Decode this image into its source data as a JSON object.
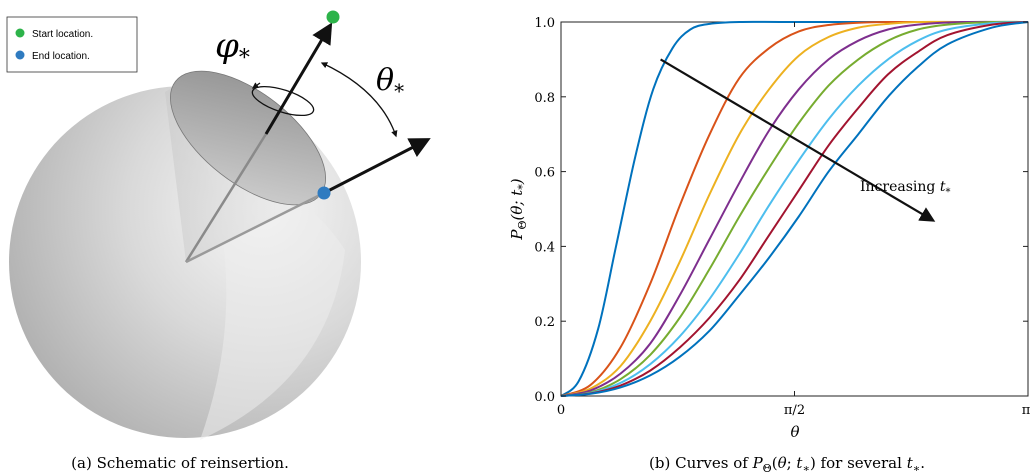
{
  "left_panel": {
    "legend": {
      "start_label": "Start location.",
      "end_label": "End location.",
      "start_color": "#2db34a",
      "end_color": "#2f7bc0"
    },
    "phi_symbol": "φ",
    "phi_subscript": "*",
    "theta_symbol": "θ",
    "theta_subscript": "*",
    "caption": "(a)  Schematic of reinsertion."
  },
  "chart_data": {
    "type": "line",
    "title": "",
    "xlabel": "θ",
    "ylabel": "P_Θ(θ; t_*)",
    "ylabel_parts": {
      "p": "P",
      "sub": "Θ",
      "args": "(θ; t",
      "args_sub": "*",
      "close": ")"
    },
    "xlim": [
      0,
      3.14159
    ],
    "ylim": [
      0,
      1
    ],
    "x_ticks": [
      {
        "value": 0,
        "label": "0"
      },
      {
        "value": 1.5708,
        "label": "π/2"
      },
      {
        "value": 3.14159,
        "label": "π"
      }
    ],
    "y_ticks": [
      {
        "value": 0.0,
        "label": "0.0"
      },
      {
        "value": 0.2,
        "label": "0.2"
      },
      {
        "value": 0.4,
        "label": "0.4"
      },
      {
        "value": 0.6,
        "label": "0.6"
      },
      {
        "value": 0.8,
        "label": "0.8"
      },
      {
        "value": 1.0,
        "label": "1.0"
      }
    ],
    "grid": false,
    "series": [
      {
        "color": "#0072bd",
        "x": [
          0,
          0.12,
          0.25,
          0.37,
          0.5,
          0.62,
          0.75,
          0.87,
          1.0,
          1.2,
          1.5,
          2.0,
          2.5,
          3.14159
        ],
        "y": [
          0,
          0.04,
          0.18,
          0.4,
          0.64,
          0.82,
          0.93,
          0.98,
          0.995,
          1,
          1,
          1,
          1,
          1
        ]
      },
      {
        "color": "#d95319",
        "x": [
          0,
          0.2,
          0.4,
          0.6,
          0.8,
          1.0,
          1.2,
          1.4,
          1.6,
          1.8,
          2.0,
          2.2,
          2.5,
          3.14159
        ],
        "y": [
          0,
          0.03,
          0.13,
          0.3,
          0.51,
          0.7,
          0.85,
          0.93,
          0.975,
          0.992,
          0.998,
          1,
          1,
          1
        ]
      },
      {
        "color": "#edb120",
        "x": [
          0,
          0.2,
          0.4,
          0.6,
          0.8,
          1.0,
          1.2,
          1.4,
          1.6,
          1.8,
          2.0,
          2.2,
          2.4,
          2.7,
          3.14159
        ],
        "y": [
          0,
          0.02,
          0.08,
          0.2,
          0.36,
          0.54,
          0.7,
          0.82,
          0.91,
          0.96,
          0.985,
          0.995,
          1,
          1,
          1
        ]
      },
      {
        "color": "#7e2f8e",
        "x": [
          0,
          0.2,
          0.4,
          0.6,
          0.8,
          1.0,
          1.2,
          1.4,
          1.6,
          1.8,
          2.0,
          2.2,
          2.4,
          2.7,
          3.14159
        ],
        "y": [
          0,
          0.015,
          0.06,
          0.14,
          0.27,
          0.42,
          0.57,
          0.71,
          0.82,
          0.9,
          0.95,
          0.98,
          0.993,
          1,
          1
        ]
      },
      {
        "color": "#77ac30",
        "x": [
          0,
          0.2,
          0.4,
          0.6,
          0.8,
          1.0,
          1.2,
          1.4,
          1.6,
          1.8,
          2.0,
          2.2,
          2.4,
          2.6,
          2.9,
          3.14159
        ],
        "y": [
          0,
          0.01,
          0.045,
          0.11,
          0.21,
          0.34,
          0.48,
          0.61,
          0.73,
          0.83,
          0.9,
          0.95,
          0.98,
          0.993,
          1,
          1
        ]
      },
      {
        "color": "#4dbeee",
        "x": [
          0,
          0.2,
          0.4,
          0.6,
          0.8,
          1.0,
          1.2,
          1.4,
          1.6,
          1.8,
          2.0,
          2.2,
          2.4,
          2.6,
          2.9,
          3.14159
        ],
        "y": [
          0,
          0.008,
          0.035,
          0.085,
          0.16,
          0.26,
          0.38,
          0.51,
          0.63,
          0.74,
          0.83,
          0.9,
          0.95,
          0.98,
          0.997,
          1
        ]
      },
      {
        "color": "#a2142f",
        "x": [
          0,
          0.2,
          0.4,
          0.6,
          0.8,
          1.0,
          1.2,
          1.4,
          1.6,
          1.8,
          2.0,
          2.2,
          2.4,
          2.6,
          2.9,
          3.14159
        ],
        "y": [
          0,
          0.007,
          0.028,
          0.068,
          0.13,
          0.21,
          0.31,
          0.43,
          0.55,
          0.67,
          0.77,
          0.86,
          0.92,
          0.965,
          0.993,
          1
        ]
      },
      {
        "color": "#0072bd",
        "x": [
          0,
          0.2,
          0.4,
          0.6,
          0.8,
          1.0,
          1.2,
          1.4,
          1.6,
          1.8,
          2.0,
          2.2,
          2.4,
          2.6,
          2.9,
          3.14159
        ],
        "y": [
          0,
          0.006,
          0.023,
          0.055,
          0.105,
          0.175,
          0.27,
          0.37,
          0.48,
          0.6,
          0.7,
          0.8,
          0.88,
          0.94,
          0.985,
          1
        ]
      }
    ],
    "annotation": {
      "text": "Increasing t",
      "sub": "*",
      "from": [
        0.67,
        0.9
      ],
      "to": [
        2.5,
        0.47
      ]
    },
    "caption": "(b)  Curves of P_Θ(θ; t_*) for several t_*."
  }
}
